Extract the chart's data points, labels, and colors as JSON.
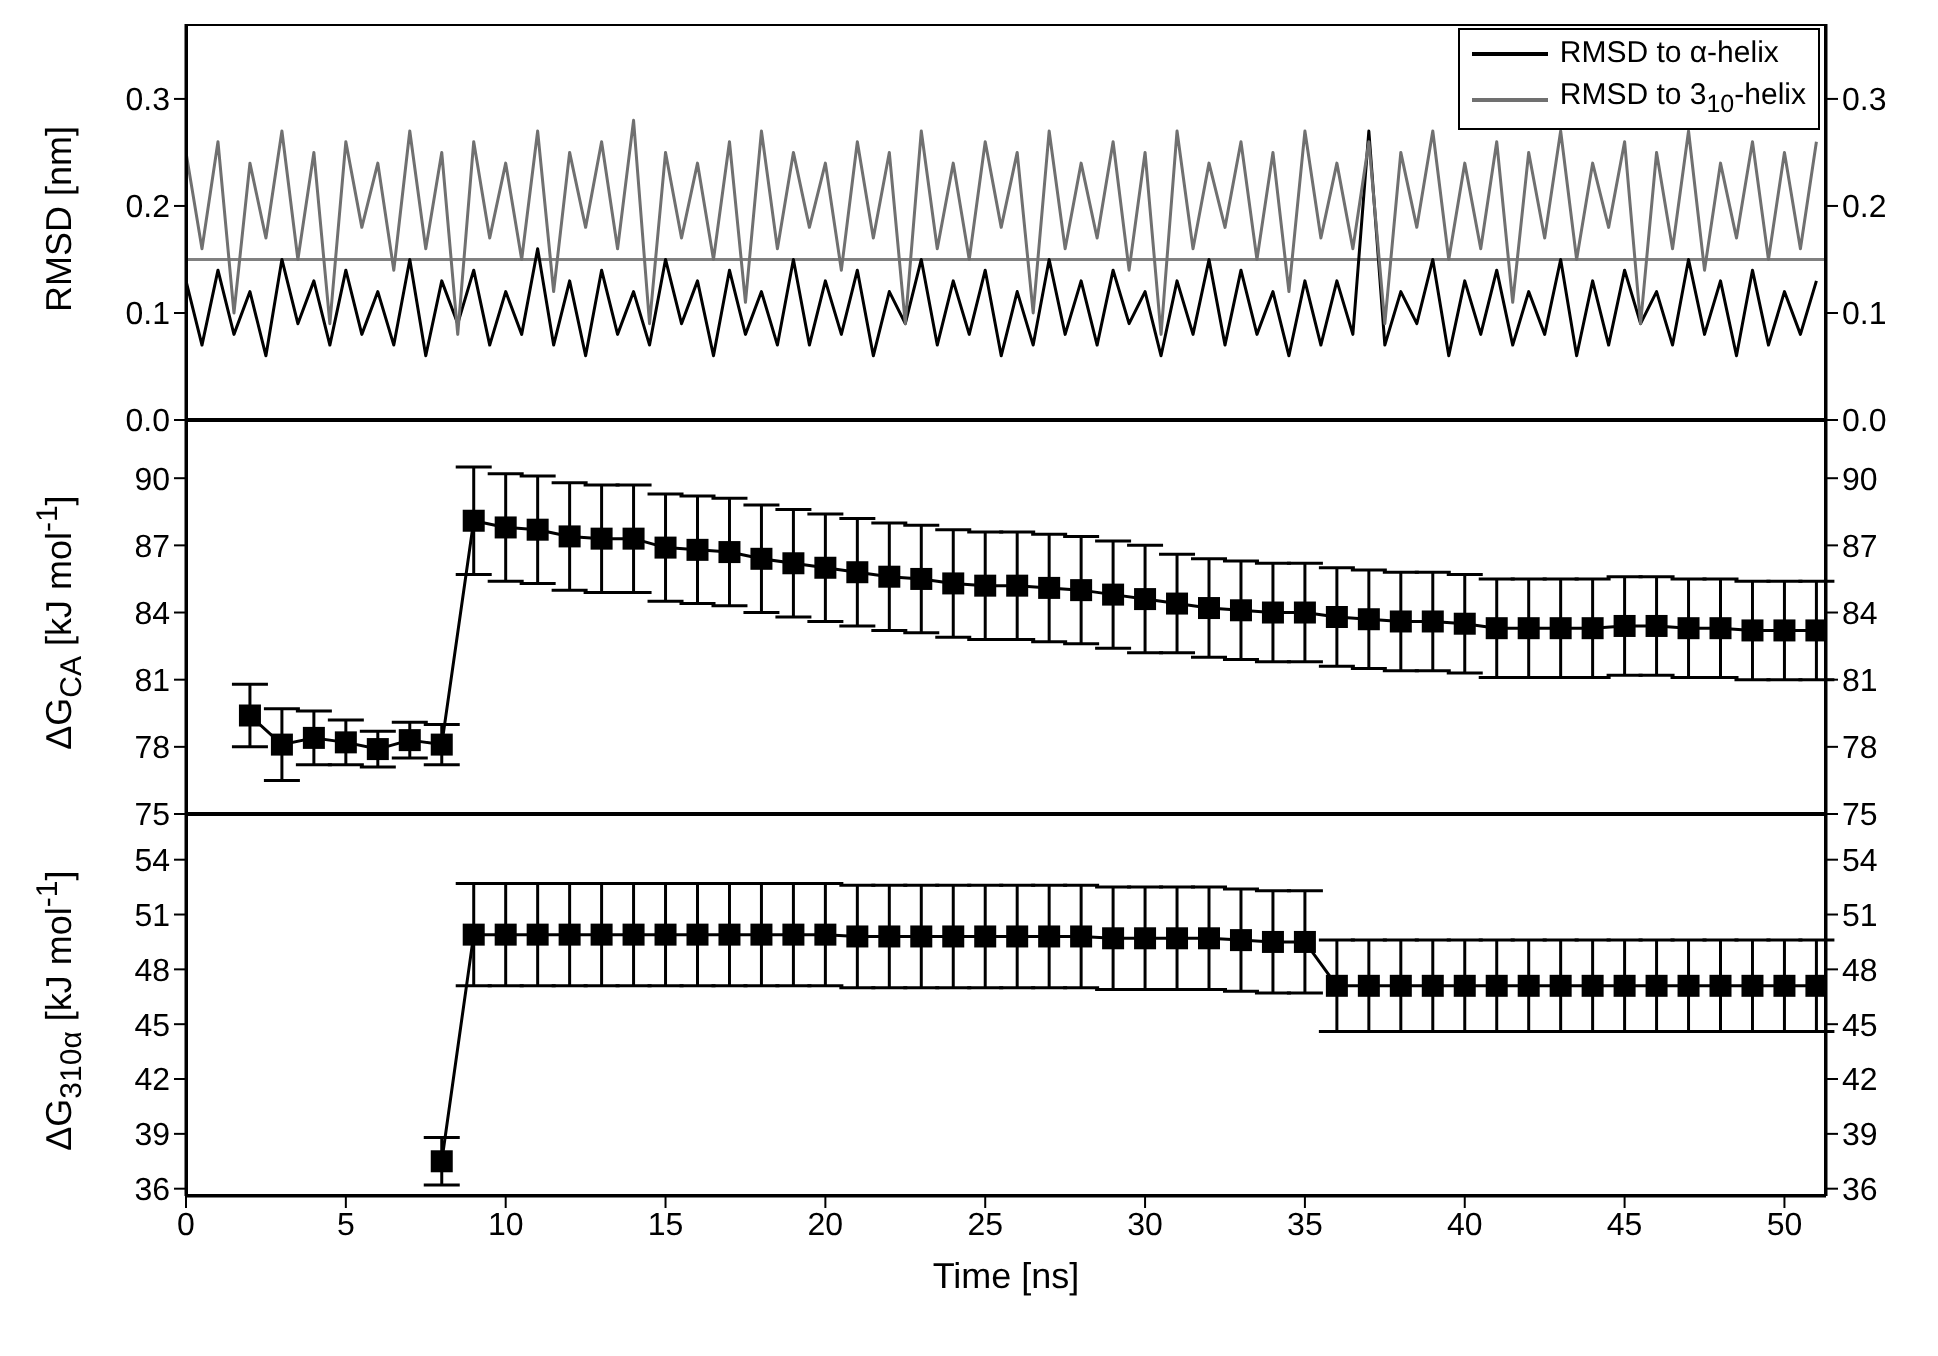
{
  "chart_data": [
    {
      "type": "line",
      "ylabel": "RMSD [nm]",
      "xlim": [
        0,
        51.3
      ],
      "xticks": [
        0,
        5,
        10,
        15,
        20,
        25,
        30,
        35,
        40,
        45,
        50
      ],
      "ylim": [
        0,
        0.37
      ],
      "yticks": [
        {
          "value": 0,
          "label": "0.0"
        },
        0.1,
        0.2,
        0.3
      ],
      "y2lim": [
        0,
        0.37
      ],
      "y2ticks": [
        {
          "value": 0,
          "label": "0.0"
        },
        0.1,
        0.2,
        0.3
      ],
      "tick_labels": "y",
      "legend": "top right",
      "marker": "none",
      "grid": false,
      "x": [
        0,
        0.5,
        1,
        1.5,
        2,
        2.5,
        3,
        3.5,
        4,
        4.5,
        5,
        5.5,
        6,
        6.5,
        7,
        7.5,
        8,
        8.5,
        9,
        9.5,
        10,
        10.5,
        11,
        11.5,
        12,
        12.5,
        13,
        13.5,
        14,
        14.5,
        15,
        15.5,
        16,
        16.5,
        17,
        17.5,
        18,
        18.5,
        19,
        19.5,
        20,
        20.5,
        21,
        21.5,
        22,
        22.5,
        23,
        23.5,
        24,
        24.5,
        25,
        25.5,
        26,
        26.5,
        27,
        27.5,
        28,
        28.5,
        29,
        29.5,
        30,
        30.5,
        31,
        31.5,
        32,
        32.5,
        33,
        33.5,
        34,
        34.5,
        35,
        35.5,
        36,
        36.5,
        37,
        37.5,
        38,
        38.5,
        39,
        39.5,
        40,
        40.5,
        41,
        41.5,
        42,
        42.5,
        43,
        43.5,
        44,
        44.5,
        45,
        45.5,
        46,
        46.5,
        47,
        47.5,
        48,
        48.5,
        49,
        49.5,
        50,
        50.5,
        51
      ],
      "ref_lines": [
        {
          "axis": "y",
          "value": 0.15,
          "color": "#808080"
        }
      ],
      "series": [
        {
          "name": "RMSD to α-helix",
          "color": "#000000",
          "values": [
            0.13,
            0.07,
            0.14,
            0.08,
            0.12,
            0.06,
            0.15,
            0.09,
            0.13,
            0.07,
            0.14,
            0.08,
            0.12,
            0.07,
            0.15,
            0.06,
            0.13,
            0.09,
            0.14,
            0.07,
            0.12,
            0.08,
            0.16,
            0.07,
            0.13,
            0.06,
            0.14,
            0.08,
            0.12,
            0.07,
            0.15,
            0.09,
            0.13,
            0.06,
            0.14,
            0.08,
            0.12,
            0.07,
            0.15,
            0.07,
            0.13,
            0.08,
            0.14,
            0.06,
            0.12,
            0.09,
            0.15,
            0.07,
            0.13,
            0.08,
            0.14,
            0.06,
            0.12,
            0.07,
            0.15,
            0.08,
            0.13,
            0.07,
            0.14,
            0.09,
            0.12,
            0.06,
            0.13,
            0.08,
            0.15,
            0.07,
            0.14,
            0.08,
            0.12,
            0.06,
            0.13,
            0.07,
            0.13,
            0.08,
            0.27,
            0.07,
            0.12,
            0.09,
            0.15,
            0.06,
            0.13,
            0.08,
            0.14,
            0.07,
            0.12,
            0.08,
            0.15,
            0.06,
            0.13,
            0.07,
            0.14,
            0.09,
            0.12,
            0.07,
            0.15,
            0.08,
            0.13,
            0.06,
            0.14,
            0.07,
            0.12,
            0.08,
            0.13
          ]
        },
        {
          "name": "RMSD to 3$_{10}$-helix",
          "color": "#707070",
          "values": [
            0.25,
            0.16,
            0.26,
            0.1,
            0.24,
            0.17,
            0.27,
            0.15,
            0.25,
            0.09,
            0.26,
            0.18,
            0.24,
            0.14,
            0.27,
            0.16,
            0.25,
            0.08,
            0.26,
            0.17,
            0.24,
            0.15,
            0.27,
            0.12,
            0.25,
            0.18,
            0.26,
            0.16,
            0.28,
            0.09,
            0.25,
            0.17,
            0.24,
            0.15,
            0.26,
            0.11,
            0.27,
            0.16,
            0.25,
            0.18,
            0.24,
            0.14,
            0.26,
            0.17,
            0.25,
            0.09,
            0.27,
            0.16,
            0.24,
            0.15,
            0.26,
            0.18,
            0.25,
            0.1,
            0.27,
            0.16,
            0.24,
            0.17,
            0.26,
            0.14,
            0.25,
            0.08,
            0.27,
            0.16,
            0.24,
            0.18,
            0.26,
            0.15,
            0.25,
            0.12,
            0.27,
            0.17,
            0.24,
            0.16,
            0.26,
            0.09,
            0.25,
            0.18,
            0.27,
            0.15,
            0.24,
            0.16,
            0.26,
            0.11,
            0.25,
            0.17,
            0.27,
            0.15,
            0.24,
            0.18,
            0.26,
            0.09,
            0.25,
            0.16,
            0.27,
            0.14,
            0.24,
            0.17,
            0.26,
            0.15,
            0.25,
            0.16,
            0.26
          ]
        }
      ]
    },
    {
      "type": "line",
      "ylabel": "ΔG$_{CA}$ [kJ mol$^{-1}$]",
      "xlim": [
        0,
        51.3
      ],
      "xticks": [
        0,
        5,
        10,
        15,
        20,
        25,
        30,
        35,
        40,
        45,
        50
      ],
      "ylim": [
        75,
        92.6
      ],
      "yticks": [
        75,
        78,
        81,
        84,
        87,
        90
      ],
      "y2lim": [
        75,
        92.6
      ],
      "y2ticks": [
        75,
        78,
        81,
        84,
        87,
        90
      ],
      "tick_labels": "y",
      "marker": "square",
      "grid": false,
      "x": [
        2,
        3,
        4,
        5,
        6,
        7,
        8,
        9,
        10,
        11,
        12,
        13,
        14,
        15,
        16,
        17,
        18,
        19,
        20,
        21,
        22,
        23,
        24,
        25,
        26,
        27,
        28,
        29,
        30,
        31,
        32,
        33,
        34,
        35,
        36,
        37,
        38,
        39,
        40,
        41,
        42,
        43,
        44,
        45,
        46,
        47,
        48,
        49,
        50,
        51
      ],
      "series": [
        {
          "color": "#000000",
          "values": [
            79.4,
            78.1,
            78.4,
            78.2,
            77.9,
            78.3,
            78.1,
            88.1,
            87.8,
            87.7,
            87.4,
            87.3,
            87.3,
            86.9,
            86.8,
            86.7,
            86.4,
            86.2,
            86.0,
            85.8,
            85.6,
            85.5,
            85.3,
            85.2,
            85.2,
            85.1,
            85.0,
            84.8,
            84.6,
            84.4,
            84.2,
            84.1,
            84.0,
            84.0,
            83.8,
            83.7,
            83.6,
            83.6,
            83.5,
            83.3,
            83.3,
            83.3,
            83.3,
            83.4,
            83.4,
            83.3,
            83.3,
            83.2,
            83.2,
            83.2
          ],
          "errors": [
            1.4,
            1.6,
            1.2,
            1.0,
            0.8,
            0.8,
            0.9,
            2.4,
            2.4,
            2.4,
            2.4,
            2.4,
            2.4,
            2.4,
            2.4,
            2.4,
            2.4,
            2.4,
            2.4,
            2.4,
            2.4,
            2.4,
            2.4,
            2.4,
            2.4,
            2.4,
            2.4,
            2.4,
            2.4,
            2.2,
            2.2,
            2.2,
            2.2,
            2.2,
            2.2,
            2.2,
            2.2,
            2.2,
            2.2,
            2.2,
            2.2,
            2.2,
            2.2,
            2.2,
            2.2,
            2.2,
            2.2,
            2.2,
            2.2,
            2.2
          ]
        }
      ]
    },
    {
      "type": "line",
      "ylabel": "ΔG$_{310α}$ [kJ mol$^{-1}$]",
      "xlabel": "Time [ns]",
      "xlim": [
        0,
        51.3
      ],
      "xticks": [
        0,
        5,
        10,
        15,
        20,
        25,
        30,
        35,
        40,
        45,
        50
      ],
      "ylim": [
        35.6,
        56.5
      ],
      "yticks": [
        36,
        39,
        42,
        45,
        48,
        51,
        54
      ],
      "y2lim": [
        35.6,
        56.5
      ],
      "y2ticks": [
        36,
        39,
        42,
        45,
        48,
        51,
        54
      ],
      "marker": "square",
      "grid": false,
      "x": [
        8,
        9,
        10,
        11,
        12,
        13,
        14,
        15,
        16,
        17,
        18,
        19,
        20,
        21,
        22,
        23,
        24,
        25,
        26,
        27,
        28,
        29,
        30,
        31,
        32,
        33,
        34,
        35,
        36,
        37,
        38,
        39,
        40,
        41,
        42,
        43,
        44,
        45,
        46,
        47,
        48,
        49,
        50,
        51
      ],
      "series": [
        {
          "color": "#000000",
          "values": [
            37.5,
            49.9,
            49.9,
            49.9,
            49.9,
            49.9,
            49.9,
            49.9,
            49.9,
            49.9,
            49.9,
            49.9,
            49.9,
            49.8,
            49.8,
            49.8,
            49.8,
            49.8,
            49.8,
            49.8,
            49.8,
            49.7,
            49.7,
            49.7,
            49.7,
            49.6,
            49.5,
            49.5,
            47.1,
            47.1,
            47.1,
            47.1,
            47.1,
            47.1,
            47.1,
            47.1,
            47.1,
            47.1,
            47.1,
            47.1,
            47.1,
            47.1,
            47.1,
            47.1
          ],
          "errors": [
            1.3,
            2.8,
            2.8,
            2.8,
            2.8,
            2.8,
            2.8,
            2.8,
            2.8,
            2.8,
            2.8,
            2.8,
            2.8,
            2.8,
            2.8,
            2.8,
            2.8,
            2.8,
            2.8,
            2.8,
            2.8,
            2.8,
            2.8,
            2.8,
            2.8,
            2.8,
            2.8,
            2.8,
            2.5,
            2.5,
            2.5,
            2.5,
            2.5,
            2.5,
            2.5,
            2.5,
            2.5,
            2.5,
            2.5,
            2.5,
            2.5,
            2.5,
            2.5,
            2.5
          ]
        }
      ]
    }
  ]
}
